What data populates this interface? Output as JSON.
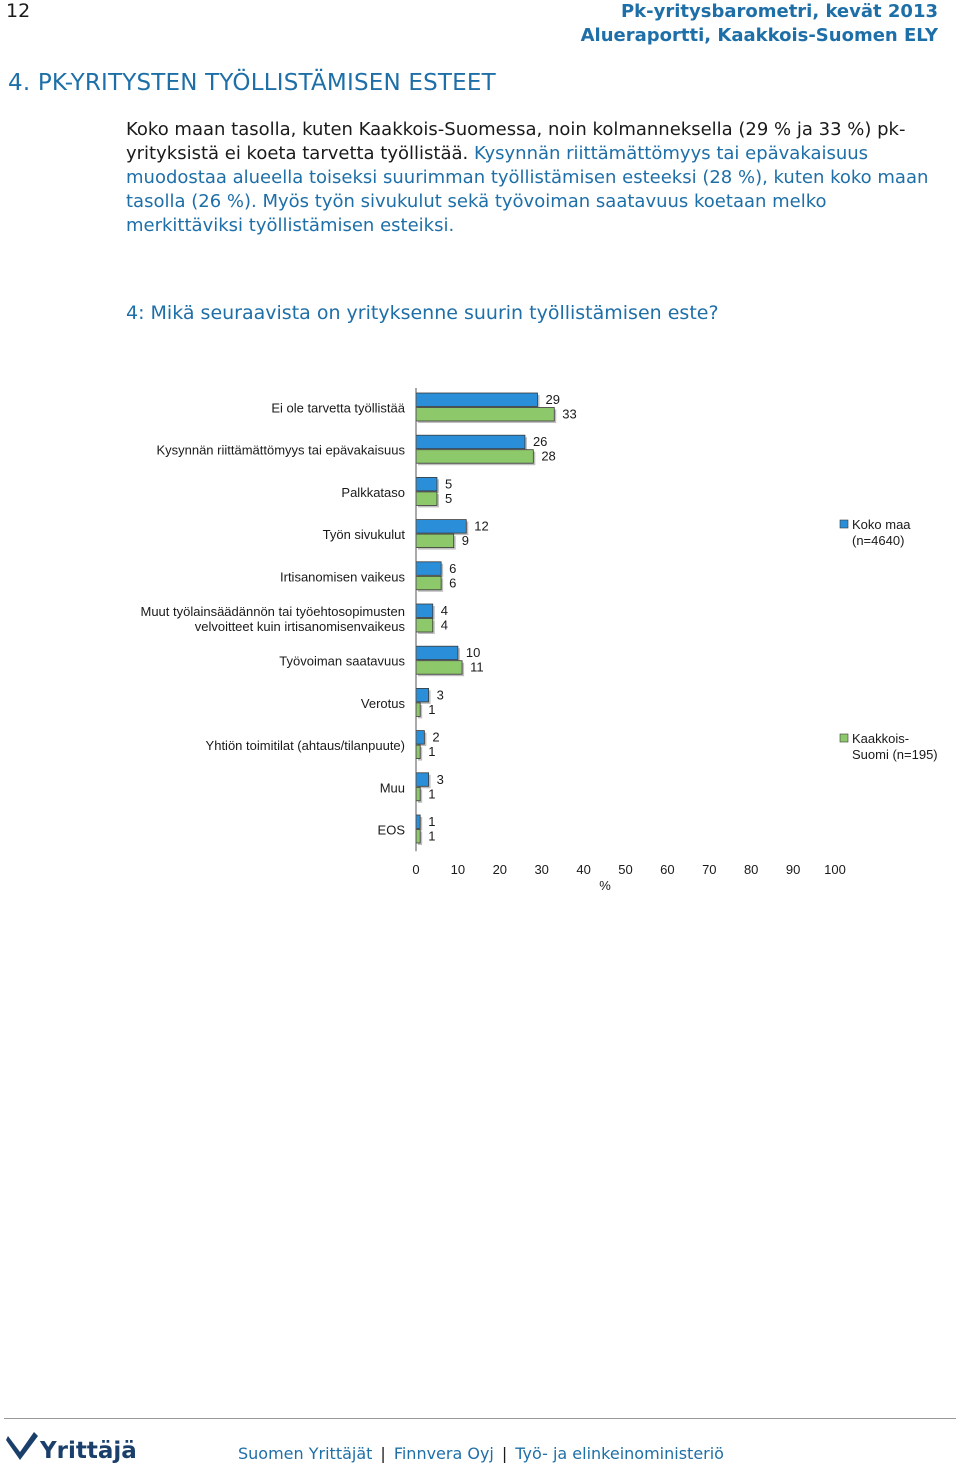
{
  "page_number": "12",
  "header": {
    "line1": "Pk-yritysbarometri, kevät 2013",
    "line2": "Alueraportti, Kaakkois-Suomen ELY"
  },
  "section_title": "4.  PK-YRITYSTEN TYÖLLISTÄMISEN ESTEET",
  "paragraph": {
    "black1": "Koko maan tasolla, kuten Kaakkois-Suomessa, noin kolmanneksella (29 % ja 33 %) pk-yrityksistä ei koeta tarvetta työllistää. ",
    "blue1": "Kysynnän riittämättömyys tai epävakaisuus muodostaa alueella toiseksi suurimman työllistämisen esteeksi (28 %), kuten koko maan tasolla (26 %).",
    "black2": " ",
    "blue2": "Myös työn sivukulut sekä työvoiman saatavuus koetaan melko merkittäviksi työllistämisen esteiksi."
  },
  "question": "4: Mikä seuraavista on yrityksenne suurin työllistämisen este?",
  "chart_data": {
    "type": "bar",
    "orientation": "horizontal",
    "categories": [
      [
        "Ei ole tarvetta työllistää"
      ],
      [
        "Kysynnän riittämättömyys tai epävakaisuus"
      ],
      [
        "Palkkataso"
      ],
      [
        "Työn sivukulut"
      ],
      [
        "Irtisanomisen vaikeus"
      ],
      [
        "Muut työlainsäädännön tai työehtosopimusten",
        "velvoitteet kuin irtisanomisenvaikeus"
      ],
      [
        "Työvoiman saatavuus"
      ],
      [
        "Verotus"
      ],
      [
        "Yhtiön toimitilat (ahtaus/tilanpuute)"
      ],
      [
        "Muu"
      ],
      [
        "EOS"
      ]
    ],
    "series": [
      {
        "name": "Koko maa (n=4640)",
        "legend_lines": [
          "Koko maa",
          "(n=4640)"
        ],
        "color": "#2a8fd8",
        "values": [
          29,
          26,
          5,
          12,
          6,
          4,
          10,
          3,
          2,
          3,
          1
        ]
      },
      {
        "name": "Kaakkois-Suomi (n=195)",
        "legend_lines": [
          "Kaakkois-",
          "Suomi (n=195)"
        ],
        "color": "#8dc96a",
        "values": [
          33,
          28,
          5,
          9,
          6,
          4,
          11,
          1,
          1,
          1,
          1
        ]
      }
    ],
    "xlim": [
      0,
      100
    ],
    "xticks": [
      0,
      10,
      20,
      30,
      40,
      50,
      60,
      70,
      80,
      90,
      100
    ],
    "xlabel": "%",
    "grid": false,
    "legend_placement": "right"
  },
  "footer": {
    "logo_text": "Yrittäjät",
    "items": [
      "Suomen Yrittäjät",
      "Finnvera Oyj",
      "Työ- ja elinkeinoministeriö"
    ]
  }
}
